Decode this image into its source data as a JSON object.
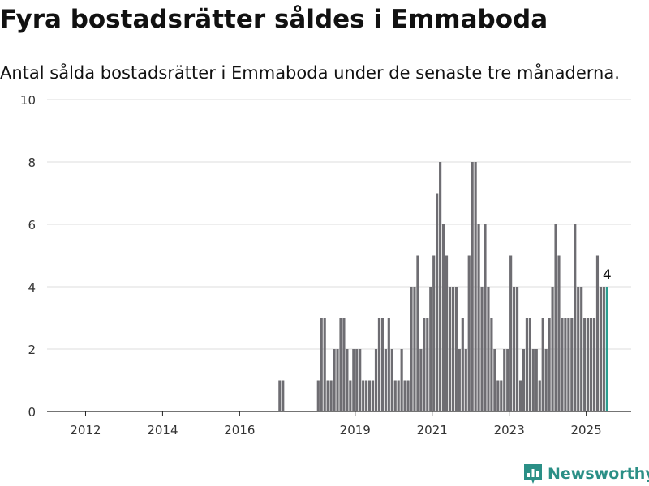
{
  "title": "Fyra bostadsrätter såldes i Emmaboda",
  "subtitle": "Antal sålda bostadsrätter i Emmaboda under de senaste tre månaderna.",
  "brand": "Newsworthy",
  "colors": {
    "bar": "#6e6d72",
    "highlight": "#2a9d8f",
    "grid": "#dddddd",
    "brand": "#2b8f86"
  },
  "chart_data": {
    "type": "bar",
    "title": "",
    "xlabel": "",
    "ylabel": "",
    "ylim": [
      0,
      10
    ],
    "yticks": [
      0,
      2,
      4,
      6,
      8,
      10
    ],
    "xticks": [
      "2012",
      "2014",
      "2016",
      "2019",
      "2021",
      "2023",
      "2025"
    ],
    "xlim": [
      "2011-01",
      "2026-03"
    ],
    "grid": true,
    "highlight_label": "4",
    "categories": [
      "2017-01",
      "2017-02",
      "2018-01",
      "2018-02",
      "2018-03",
      "2018-04",
      "2018-05",
      "2018-06",
      "2018-07",
      "2018-08",
      "2018-09",
      "2018-10",
      "2018-11",
      "2018-12",
      "2019-01",
      "2019-02",
      "2019-03",
      "2019-04",
      "2019-05",
      "2019-06",
      "2019-07",
      "2019-08",
      "2019-09",
      "2019-10",
      "2019-11",
      "2019-12",
      "2020-01",
      "2020-02",
      "2020-03",
      "2020-04",
      "2020-05",
      "2020-06",
      "2020-07",
      "2020-08",
      "2020-09",
      "2020-10",
      "2020-11",
      "2020-12",
      "2021-01",
      "2021-02",
      "2021-03",
      "2021-04",
      "2021-05",
      "2021-06",
      "2021-07",
      "2021-08",
      "2021-09",
      "2021-10",
      "2021-11",
      "2021-12",
      "2022-01",
      "2022-02",
      "2022-03",
      "2022-04",
      "2022-05",
      "2022-06",
      "2022-07",
      "2022-08",
      "2022-09",
      "2022-10",
      "2022-11",
      "2022-12",
      "2023-01",
      "2023-02",
      "2023-03",
      "2023-04",
      "2023-05",
      "2023-06",
      "2023-07",
      "2023-08",
      "2023-09",
      "2023-10",
      "2023-11",
      "2023-12",
      "2024-01",
      "2024-02",
      "2024-03",
      "2024-04",
      "2024-05",
      "2024-06",
      "2024-07",
      "2024-08",
      "2024-09",
      "2024-10",
      "2024-11",
      "2024-12",
      "2025-01",
      "2025-02",
      "2025-03",
      "2025-04",
      "2025-05",
      "2025-06",
      "2025-07"
    ],
    "values": [
      1,
      1,
      1,
      3,
      3,
      1,
      1,
      2,
      2,
      3,
      3,
      2,
      1,
      2,
      2,
      2,
      1,
      1,
      1,
      1,
      2,
      3,
      3,
      2,
      3,
      2,
      1,
      1,
      2,
      1,
      1,
      4,
      4,
      5,
      2,
      3,
      3,
      4,
      5,
      7,
      8,
      6,
      5,
      4,
      4,
      4,
      2,
      3,
      2,
      5,
      8,
      8,
      6,
      4,
      6,
      4,
      3,
      2,
      1,
      1,
      2,
      2,
      5,
      4,
      4,
      1,
      2,
      3,
      3,
      2,
      2,
      1,
      3,
      2,
      3,
      4,
      6,
      5,
      3,
      3,
      3,
      3,
      6,
      4,
      4,
      3,
      3,
      3,
      3,
      5,
      4,
      4,
      4
    ]
  }
}
